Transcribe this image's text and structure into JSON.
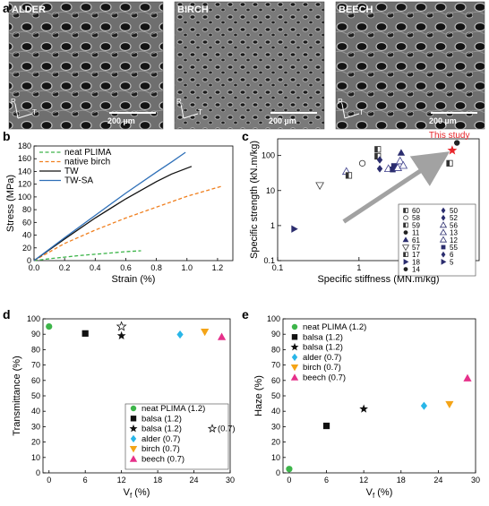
{
  "panel_letters": {
    "a": "a",
    "b": "b",
    "c": "c",
    "d": "d",
    "e": "e"
  },
  "sem": [
    {
      "label": "ALDER",
      "scale_bar": "200 µm",
      "axes": [
        "R",
        "T"
      ]
    },
    {
      "label": "BIRCH",
      "scale_bar": "200 µm",
      "axes": [
        "R",
        "T"
      ]
    },
    {
      "label": "BEECH",
      "scale_bar": "200 µm",
      "axes": [
        "R",
        "T"
      ]
    }
  ],
  "colors": {
    "accent_red": "#e8262b",
    "navy": "#2b2d6e",
    "grey_arrow": "#8c8c8c"
  },
  "chart_data": [
    {
      "panel": "b",
      "type": "line",
      "xlabel": "Strain (%)",
      "ylabel": "Stress (MPa)",
      "xlim": [
        0,
        1.3
      ],
      "ylim": [
        0,
        180
      ],
      "xticks": [
        "0.0",
        "0.2",
        "0.4",
        "0.6",
        "0.8",
        "1.0",
        "1.2"
      ],
      "yticks": [
        "0",
        "20",
        "40",
        "60",
        "80",
        "100",
        "120",
        "140",
        "160",
        "180"
      ],
      "legend_position": "top-left",
      "series": [
        {
          "name": "neat PLIMA",
          "color": "#3db54a",
          "style": "dashed",
          "x": [
            0,
            0.1,
            0.2,
            0.3,
            0.4,
            0.5,
            0.6,
            0.7
          ],
          "y": [
            0,
            3,
            5.5,
            8,
            10,
            12,
            14,
            15.5
          ]
        },
        {
          "name": "native birch",
          "color": "#f07f1e",
          "style": "dashed",
          "x": [
            0,
            0.2,
            0.4,
            0.6,
            0.8,
            1.0,
            1.23
          ],
          "y": [
            0,
            27,
            48,
            67,
            84,
            101,
            117
          ]
        },
        {
          "name": "TW",
          "color": "#111111",
          "style": "solid",
          "x": [
            0,
            0.2,
            0.4,
            0.6,
            0.8,
            0.9,
            1.03
          ],
          "y": [
            0,
            34,
            67,
            97,
            124,
            136,
            148
          ]
        },
        {
          "name": "TW-SA",
          "color": "#2f70b8",
          "style": "solid",
          "x": [
            0,
            0.2,
            0.4,
            0.6,
            0.8,
            0.9,
            0.99
          ],
          "y": [
            0,
            36,
            71,
            106,
            139,
            155,
            170
          ]
        }
      ]
    },
    {
      "panel": "c",
      "type": "scatter",
      "xscale": "log",
      "yscale": "log",
      "xlabel": "Specific stiffness (MN.m/kg)",
      "ylabel": "Specific strength (kN.m/kg)",
      "xlim": [
        0.1,
        30
      ],
      "ylim": [
        0.1,
        300
      ],
      "xticks": [
        "0.1",
        "1",
        "10"
      ],
      "yticks": [
        "0.1",
        "1",
        "10",
        "100"
      ],
      "annotation": "This study",
      "legend_position": "bottom-right",
      "legend_labels": [
        "60",
        "58",
        "59",
        "11",
        "61",
        "57",
        "17",
        "18",
        "14",
        "50",
        "52",
        "56",
        "13",
        "12",
        "55",
        "6",
        "5"
      ],
      "points": [
        {
          "x": 0.16,
          "y": 0.8,
          "marker": "tri-right"
        },
        {
          "x": 0.33,
          "y": 14,
          "marker": "tri-down-open"
        },
        {
          "x": 0.7,
          "y": 35,
          "marker": "tri-up-open"
        },
        {
          "x": 0.75,
          "y": 27,
          "marker": "square-half"
        },
        {
          "x": 1.1,
          "y": 60,
          "marker": "circle-open"
        },
        {
          "x": 1.7,
          "y": 150,
          "marker": "square-half"
        },
        {
          "x": 1.7,
          "y": 95,
          "marker": "square-half"
        },
        {
          "x": 1.8,
          "y": 42,
          "marker": "diamond"
        },
        {
          "x": 1.8,
          "y": 75,
          "marker": "diamond"
        },
        {
          "x": 2.3,
          "y": 42,
          "marker": "tri-up-open"
        },
        {
          "x": 2.6,
          "y": 40,
          "marker": "square"
        },
        {
          "x": 2.7,
          "y": 50,
          "marker": "square"
        },
        {
          "x": 3.0,
          "y": 45,
          "marker": "tri-up-open"
        },
        {
          "x": 3.2,
          "y": 70,
          "marker": "tri-up-open"
        },
        {
          "x": 3.3,
          "y": 120,
          "marker": "tri-up"
        },
        {
          "x": 3.5,
          "y": 52,
          "marker": "tri-up-open"
        },
        {
          "x": 13,
          "y": 60,
          "marker": "square-half"
        },
        {
          "x": 16,
          "y": 230,
          "marker": "circle"
        },
        {
          "x": 14,
          "y": 140,
          "marker": "star-red"
        }
      ]
    },
    {
      "panel": "d",
      "type": "scatter",
      "xlabel": "V_f (%)",
      "ylabel": "Transmittance (%)",
      "xlim": [
        -1,
        30
      ],
      "ylim": [
        0,
        100
      ],
      "xticks": [
        "0",
        "6",
        "12",
        "18",
        "24",
        "30"
      ],
      "yticks": [
        "0",
        "10",
        "20",
        "30",
        "40",
        "50",
        "60",
        "70",
        "80",
        "90",
        "100"
      ],
      "legend_position": "bottom-right",
      "series": [
        {
          "name": "neat PLIMA (1.2)",
          "marker": "circle",
          "color": "#3db54a",
          "x": 0,
          "y": 95
        },
        {
          "name": "balsa (1.2)",
          "marker": "square",
          "color": "#111111",
          "x": 6,
          "y": 90.5
        },
        {
          "name": "balsa (1.2)",
          "marker": "star",
          "color": "#111111",
          "x": 12,
          "y": 89
        },
        {
          "name": "(0.7)",
          "marker": "star-open",
          "color": "#111111",
          "x": 12,
          "y": 95
        },
        {
          "name": "alder (0.7)",
          "marker": "diamond",
          "color": "#29b6e8",
          "x": 21.7,
          "y": 89.8
        },
        {
          "name": "birch (0.7)",
          "marker": "tri-down",
          "color": "#f4a417",
          "x": 25.8,
          "y": 91.5
        },
        {
          "name": "beech (0.7)",
          "marker": "tri-up",
          "color": "#e6308a",
          "x": 28.6,
          "y": 88.3
        }
      ]
    },
    {
      "panel": "e",
      "type": "scatter",
      "xlabel": "V_f (%)",
      "ylabel": "Haze (%)",
      "xlim": [
        -1,
        30
      ],
      "ylim": [
        0,
        100
      ],
      "xticks": [
        "0",
        "6",
        "12",
        "18",
        "24",
        "30"
      ],
      "yticks": [
        "0",
        "10",
        "20",
        "30",
        "40",
        "50",
        "60",
        "70",
        "80",
        "90",
        "100"
      ],
      "legend_position": "top-left",
      "series": [
        {
          "name": "neat PLIMA (1.2)",
          "marker": "circle",
          "color": "#3db54a",
          "x": 0,
          "y": 2.5
        },
        {
          "name": "balsa (1.2)",
          "marker": "square",
          "color": "#111111",
          "x": 6,
          "y": 30.5
        },
        {
          "name": "balsa (1.2)",
          "marker": "star",
          "color": "#111111",
          "x": 12,
          "y": 41.5
        },
        {
          "name": "alder (0.7)",
          "marker": "diamond",
          "color": "#29b6e8",
          "x": 21.7,
          "y": 43.5
        },
        {
          "name": "birch (0.7)",
          "marker": "tri-down",
          "color": "#f4a417",
          "x": 25.8,
          "y": 44.5
        },
        {
          "name": "beech (0.7)",
          "marker": "tri-up",
          "color": "#e6308a",
          "x": 28.7,
          "y": 61.5
        }
      ]
    }
  ]
}
